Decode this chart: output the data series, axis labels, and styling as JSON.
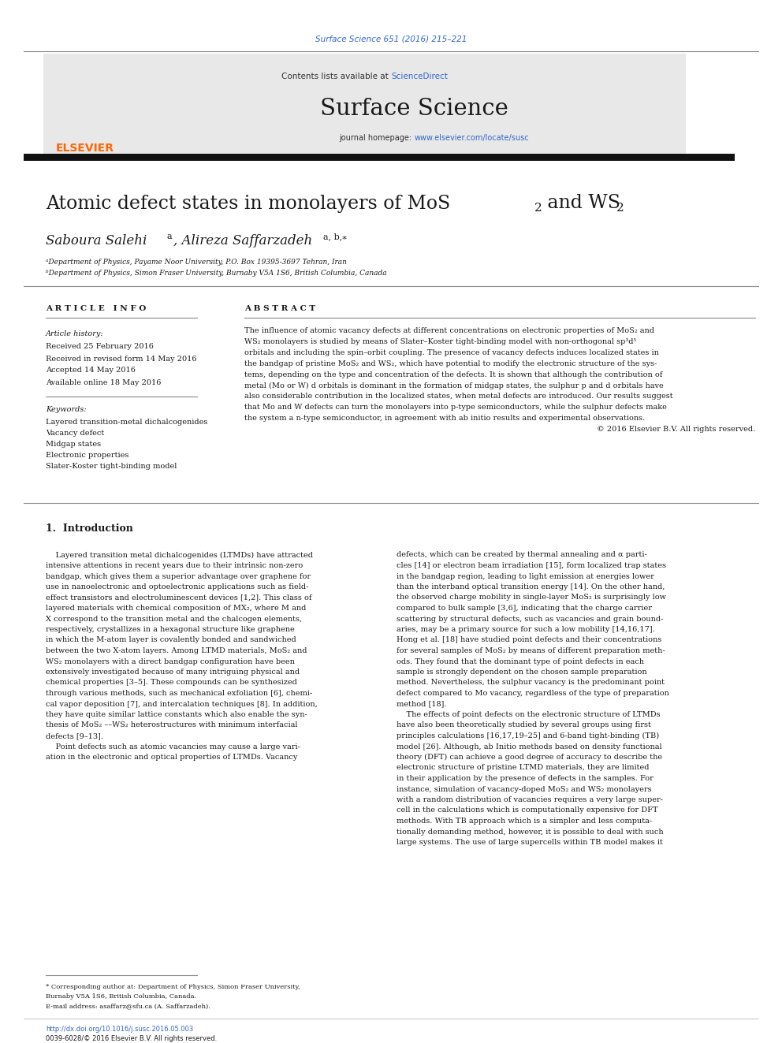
{
  "page_width": 9.92,
  "page_height": 13.23,
  "background_color": "#ffffff",
  "header_text": "Surface Science 651 (2016) 215–221",
  "header_text_color": "#3366cc",
  "journal_name": "Surface Science",
  "journal_homepage_text": "journal homepage: ",
  "journal_homepage_url": "www.elsevier.com/locate/susc",
  "contents_text": "Contents lists available at ",
  "sciencedirect_text": "ScienceDirect",
  "sciencedirect_color": "#3366cc",
  "header_bg_color": "#e8e8e8",
  "black_bar_color": "#111111",
  "elsevier_color": "#ff6600",
  "link_color": "#3366cc",
  "article_info_title": "A R T I C L E   I N F O",
  "abstract_title": "A B S T R A C T",
  "article_history_label": "Article history:",
  "received1": "Received 25 February 2016",
  "received2": "Received in revised form 14 May 2016",
  "accepted": "Accepted 14 May 2016",
  "available": "Available online 18 May 2016",
  "keywords_label": "Keywords:",
  "keywords": [
    "Layered transition-metal dichalcogenides",
    "Vacancy defect",
    "Midgap states",
    "Electronic properties",
    "Slater-Koster tight-binding model"
  ],
  "abstract_lines": [
    "The influence of atomic vacancy defects at different concentrations on electronic properties of MoS₂ and",
    "WS₂ monolayers is studied by means of Slater–Koster tight-binding model with non-orthogonal sp³d⁵",
    "orbitals and including the spin–orbit coupling. The presence of vacancy defects induces localized states in",
    "the bandgap of pristine MoS₂ and WS₂, which have potential to modify the electronic structure of the sys-",
    "tems, depending on the type and concentration of the defects. It is shown that although the contribution of",
    "metal (Mo or W) d orbitals is dominant in the formation of midgap states, the sulphur p and d orbitals have",
    "also considerable contribution in the localized states, when metal defects are introduced. Our results suggest",
    "that Mo and W defects can turn the monolayers into p-type semiconductors, while the sulphur defects make",
    "the system a n-type semiconductor, in agreement with ab initio results and experimental observations.",
    "© 2016 Elsevier B.V. All rights reserved."
  ],
  "section1_title": "1.  Introduction",
  "intro_col1_lines": [
    "    Layered transition metal dichalcogenides (LTMDs) have attracted",
    "intensive attentions in recent years due to their intrinsic non-zero",
    "bandgap, which gives them a superior advantage over graphene for",
    "use in nanoelectronic and optoelectronic applications such as field-",
    "effect transistors and electroluminescent devices [1,2]. This class of",
    "layered materials with chemical composition of MX₂, where M and",
    "X correspond to the transition metal and the chalcogen elements,",
    "respectively, crystallizes in a hexagonal structure like graphene",
    "in which the M-atom layer is covalently bonded and sandwiched",
    "between the two X-atom layers. Among LTMD materials, MoS₂ and",
    "WS₂ monolayers with a direct bandgap configuration have been",
    "extensively investigated because of many intriguing physical and",
    "chemical properties [3–5]. These compounds can be synthesized",
    "through various methods, such as mechanical exfoliation [6], chemi-",
    "cal vapor deposition [7], and intercalation techniques [8]. In addition,",
    "they have quite similar lattice constants which also enable the syn-",
    "thesis of MoS₂ ––WS₂ heterostructures with minimum interfacial",
    "defects [9–13].",
    "    Point defects such as atomic vacancies may cause a large vari-",
    "ation in the electronic and optical properties of LTMDs. Vacancy"
  ],
  "intro_col2_lines": [
    "defects, which can be created by thermal annealing and α parti-",
    "cles [14] or electron beam irradiation [15], form localized trap states",
    "in the bandgap region, leading to light emission at energies lower",
    "than the interband optical transition energy [14]. On the other hand,",
    "the observed charge mobility in single-layer MoS₂ is surprisingly low",
    "compared to bulk sample [3,6], indicating that the charge carrier",
    "scattering by structural defects, such as vacancies and grain bound-",
    "aries, may be a primary source for such a low mobility [14,16,17].",
    "Hong et al. [18] have studied point defects and their concentrations",
    "for several samples of MoS₂ by means of different preparation meth-",
    "ods. They found that the dominant type of point defects in each",
    "sample is strongly dependent on the chosen sample preparation",
    "method. Nevertheless, the sulphur vacancy is the predominant point",
    "defect compared to Mo vacancy, regardless of the type of preparation",
    "method [18].",
    "    The effects of point defects on the electronic structure of LTMDs",
    "have also been theoretically studied by several groups using first",
    "principles calculations [16,17,19–25] and 6-band tight-binding (TB)",
    "model [26]. Although, ab Initio methods based on density functional",
    "theory (DFT) can achieve a good degree of accuracy to describe the",
    "electronic structure of pristine LTMD materials, they are limited",
    "in their application by the presence of defects in the samples. For",
    "instance, simulation of vacancy-doped MoS₂ and WS₂ monolayers",
    "with a random distribution of vacancies requires a very large super-",
    "cell in the calculations which is computationally expensive for DFT",
    "methods. With TB approach which is a simpler and less computa-",
    "tionally demanding method, however, it is possible to deal with such",
    "large systems. The use of large supercells within TB model makes it"
  ],
  "footnote_line1": "* Corresponding author at: Department of Physics, Simon Fraser University,",
  "footnote_line2": "Burnaby V5A 1S6, British Columbia, Canada.",
  "footnote_email": "E-mail address: asaffarz@sfu.ca (A. Saffarzadeh).",
  "footer_doi": "http://dx.doi.org/10.1016/j.susc.2016.05.003",
  "footer_issn": "0039-6028/© 2016 Elsevier B.V. All rights reserved."
}
